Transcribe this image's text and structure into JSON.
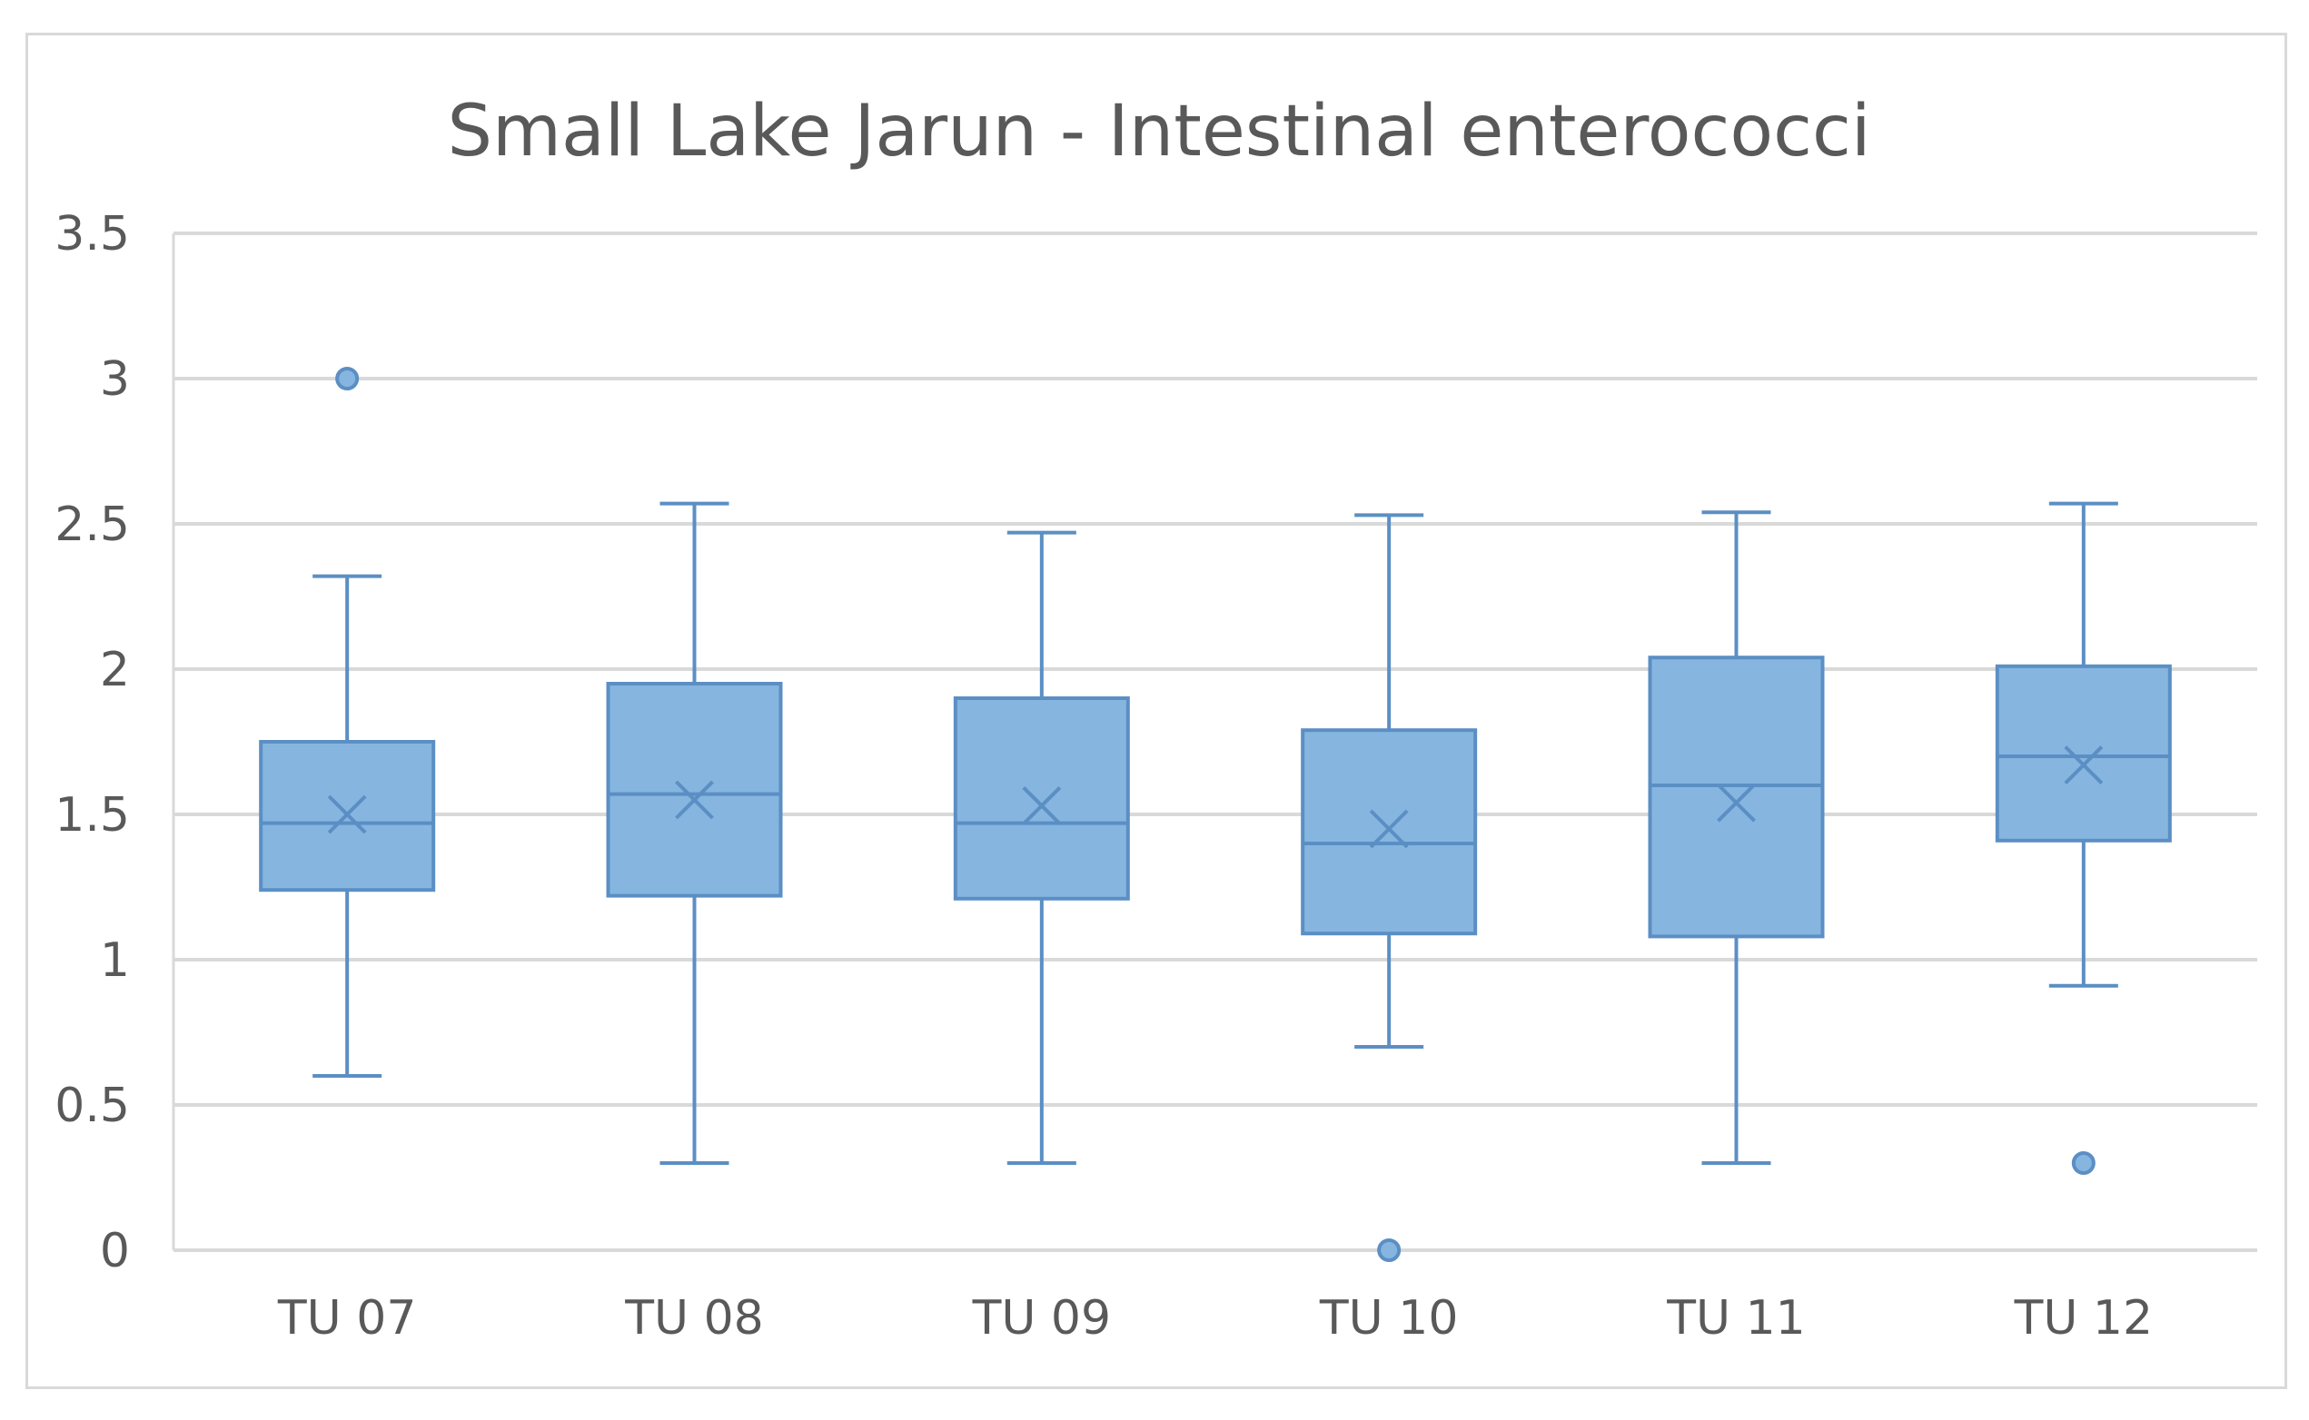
{
  "chart_data": {
    "type": "box",
    "title": "Small Lake Jarun - Intestinal enterococci",
    "xlabel": "",
    "ylabel": "",
    "ylim": [
      0,
      3.5
    ],
    "yticks": [
      "0",
      "0.5",
      "1",
      "1.5",
      "2",
      "2.5",
      "3",
      "3.5"
    ],
    "ytick_values": [
      0,
      0.5,
      1,
      1.5,
      2,
      2.5,
      3,
      3.5
    ],
    "grid": true,
    "legend": "none",
    "categories": [
      "TU 07",
      "TU 08",
      "TU 09",
      "TU 10",
      "TU 11",
      "TU 12"
    ],
    "boxes": [
      {
        "category": "TU 07",
        "whisker_low": 0.6,
        "q1": 1.24,
        "median": 1.47,
        "q3": 1.75,
        "whisker_high": 2.32,
        "mean": 1.5,
        "outliers": [
          3.0
        ]
      },
      {
        "category": "TU 08",
        "whisker_low": 0.3,
        "q1": 1.22,
        "median": 1.57,
        "q3": 1.95,
        "whisker_high": 2.57,
        "mean": 1.55,
        "outliers": []
      },
      {
        "category": "TU 09",
        "whisker_low": 0.3,
        "q1": 1.21,
        "median": 1.47,
        "q3": 1.9,
        "whisker_high": 2.47,
        "mean": 1.53,
        "outliers": []
      },
      {
        "category": "TU 10",
        "whisker_low": 0.7,
        "q1": 1.09,
        "median": 1.4,
        "q3": 1.79,
        "whisker_high": 2.53,
        "mean": 1.45,
        "outliers": [
          0.0
        ]
      },
      {
        "category": "TU 11",
        "whisker_low": 0.3,
        "q1": 1.08,
        "median": 1.6,
        "q3": 2.04,
        "whisker_high": 2.54,
        "mean": 1.54,
        "outliers": []
      },
      {
        "category": "TU 12",
        "whisker_low": 0.91,
        "q1": 1.41,
        "median": 1.7,
        "q3": 2.01,
        "whisker_high": 2.57,
        "mean": 1.67,
        "outliers": [
          0.3
        ]
      }
    ],
    "colors": {
      "box_fill": "#86b5e0",
      "box_stroke": "#5b8fc4",
      "gridline": "#d9d9d9",
      "text": "#595959"
    }
  }
}
